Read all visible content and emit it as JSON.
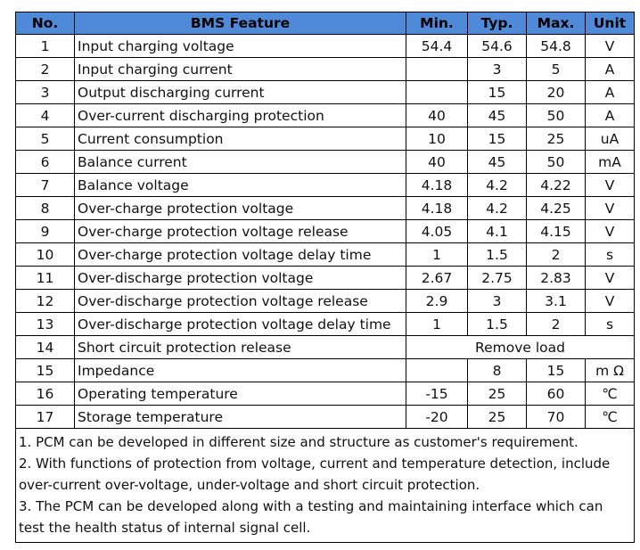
{
  "header": {
    "no": "No.",
    "feature": "BMS Feature",
    "min": "Min.",
    "typ": "Typ.",
    "max": "Max.",
    "unit": "Unit"
  },
  "rows": [
    {
      "no": "1",
      "feature": "Input charging voltage",
      "min": "54.4",
      "typ": "54.6",
      "max": "54.8",
      "unit": "V"
    },
    {
      "no": "2",
      "feature": "Input charging current",
      "min": "",
      "typ": "3",
      "max": "5",
      "unit": "A"
    },
    {
      "no": "3",
      "feature": "Output discharging current",
      "min": "",
      "typ": "15",
      "max": "20",
      "unit": "A"
    },
    {
      "no": "4",
      "feature": "Over-current discharging protection",
      "min": "40",
      "typ": "45",
      "max": "50",
      "unit": "A"
    },
    {
      "no": "5",
      "feature": "Current consumption",
      "min": "10",
      "typ": "15",
      "max": "25",
      "unit": "uA"
    },
    {
      "no": "6",
      "feature": "Balance current",
      "min": "40",
      "typ": "45",
      "max": "50",
      "unit": "mA"
    },
    {
      "no": "7",
      "feature": "Balance voltage",
      "min": "4.18",
      "typ": "4.2",
      "max": "4.22",
      "unit": "V"
    },
    {
      "no": "8",
      "feature": "Over-charge protection voltage",
      "min": "4.18",
      "typ": "4.2",
      "max": "4.25",
      "unit": "V"
    },
    {
      "no": "9",
      "feature": "Over-charge protection voltage release",
      "min": "4.05",
      "typ": "4.1",
      "max": "4.15",
      "unit": "V"
    },
    {
      "no": "10",
      "feature": "Over-charge protection voltage delay time",
      "min": "1",
      "typ": "1.5",
      "max": "2",
      "unit": "s"
    },
    {
      "no": "11",
      "feature": "Over-discharge protection voltage",
      "min": "2.67",
      "typ": "2.75",
      "max": "2.83",
      "unit": "V"
    },
    {
      "no": "12",
      "feature": "Over-discharge protection voltage release",
      "min": "2.9",
      "typ": "3",
      "max": "3.1",
      "unit": "V"
    },
    {
      "no": "13",
      "feature": "Over-discharge protection voltage delay time",
      "min": "1",
      "typ": "1.5",
      "max": "2",
      "unit": "s"
    },
    {
      "no": "14",
      "feature": "Short circuit protection release",
      "merged": "Remove load"
    },
    {
      "no": "15",
      "feature": "Impedance",
      "min": "",
      "typ": "8",
      "max": "15",
      "unit": "m Ω"
    },
    {
      "no": "16",
      "feature": "Operating temperature",
      "min": "-15",
      "typ": "25",
      "max": "60",
      "unit": "℃"
    },
    {
      "no": "17",
      "feature": "Storage temperature",
      "min": "-20",
      "typ": "25",
      "max": "70",
      "unit": "℃"
    }
  ],
  "notes": [
    "1. PCM can be developed in different size and structure as customer's requirement.",
    "2. With functions of protection from voltage, current and temperature detection, include over-current over-voltage, under-voltage and short circuit protection.",
    "3. The PCM can be developed along with a testing and maintaining interface which can test the health status of internal signal cell."
  ],
  "colors": {
    "header_bg": "#4f8ad8",
    "border": "#000000"
  }
}
